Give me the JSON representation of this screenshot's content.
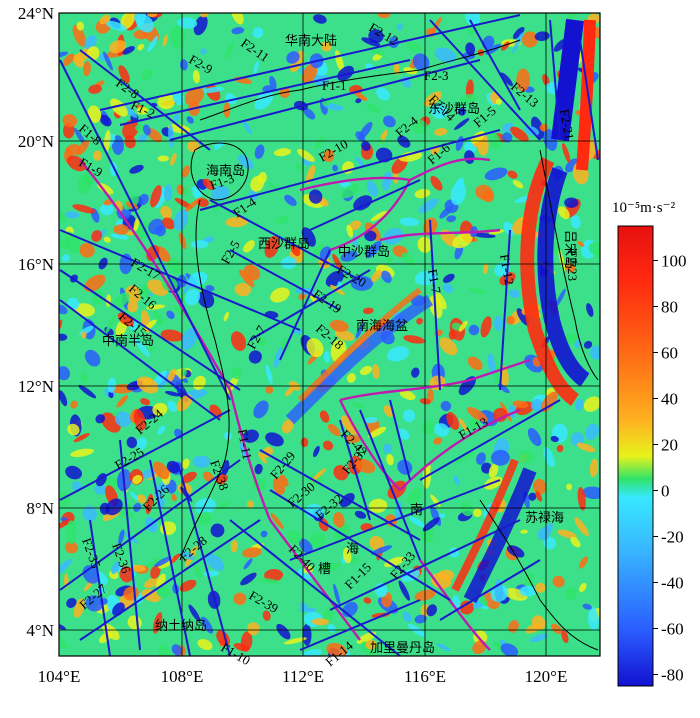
{
  "map": {
    "x_ticks": [
      "104°E",
      "108°E",
      "112°E",
      "116°E",
      "120°E"
    ],
    "y_ticks": [
      "24°N",
      "20°N",
      "16°N",
      "12°N",
      "8°N",
      "4°N"
    ],
    "place_labels": [
      {
        "id": "huanan",
        "text": "华南大陆"
      },
      {
        "id": "dongsha",
        "text": "东沙群岛"
      },
      {
        "id": "hainan",
        "text": "海南岛"
      },
      {
        "id": "xisha",
        "text": "西沙群岛"
      },
      {
        "id": "zhongsha",
        "text": "中沙群岛"
      },
      {
        "id": "nanhai",
        "text": "南海海盆"
      },
      {
        "id": "zhongnan",
        "text": "中南半岛"
      },
      {
        "id": "lvsong",
        "text": "吕宋岛"
      },
      {
        "id": "sulu",
        "text": "苏禄海"
      },
      {
        "id": "natuna",
        "text": "纳土纳岛"
      },
      {
        "id": "kalimantan",
        "text": "加里曼丹岛"
      },
      {
        "id": "nan",
        "text": "南"
      },
      {
        "id": "hai",
        "text": "海"
      },
      {
        "id": "cao",
        "text": "槽"
      }
    ],
    "faults": [
      "F2-12",
      "F2-11",
      "F2-9",
      "F2-8",
      "F1-2",
      "F2-3",
      "F1-1",
      "F2-13",
      "F2-21",
      "F2-14",
      "F2-4",
      "F1-8",
      "F1-9",
      "F1-5",
      "F2-10",
      "F1-6",
      "F1-4",
      "F2-5",
      "F1-3",
      "F2-20",
      "F1-7",
      "F1-12",
      "F2-23",
      "F2-17",
      "F2-16",
      "F2-19",
      "F2-15",
      "F2-18",
      "F2-7",
      "F1-11",
      "F2-24",
      "F2-42",
      "F1-13",
      "F2-25",
      "F2-38",
      "F2-37",
      "F2-29",
      "F2-30",
      "F2-26",
      "F2-32",
      "F2-36",
      "F2-35",
      "F2-28",
      "F2-40",
      "F1-15",
      "F2-33",
      "F2-27",
      "F2-39",
      "F1-10",
      "F1-14"
    ],
    "colors": {
      "fault_line": "#1a1acc",
      "boundary_line": "#c01bb0"
    }
  },
  "colorbar": {
    "unit": "10⁻⁵m·s⁻²",
    "ticks": [
      "100",
      "80",
      "60",
      "40",
      "20",
      "0",
      "-20",
      "-40",
      "-60",
      "-80"
    ],
    "min": -85,
    "max": 115,
    "stops": [
      "#1212d0",
      "#2a5cff",
      "#39b8ff",
      "#38e8ff",
      "#2fe36a",
      "#e8f21c",
      "#ffb020",
      "#ff6b14",
      "#ff2a10",
      "#e81010"
    ]
  }
}
